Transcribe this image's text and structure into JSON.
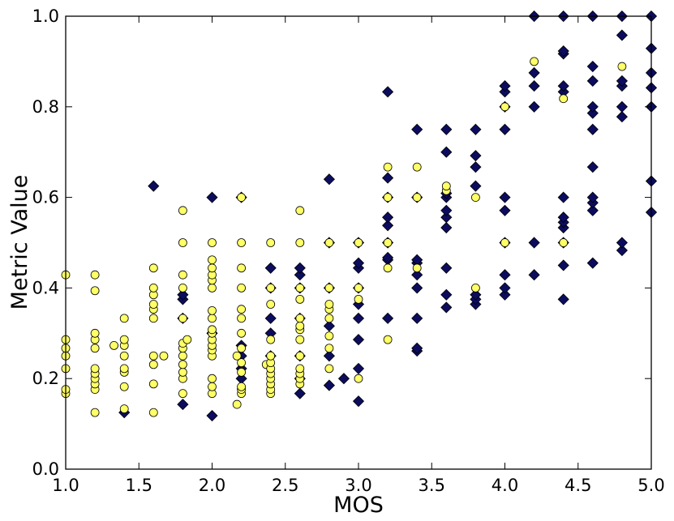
{
  "chart_data": {
    "type": "scatter",
    "xlabel": "MOS",
    "ylabel": "Metric Value",
    "xlim": [
      1.0,
      5.0
    ],
    "ylim": [
      0.0,
      1.0
    ],
    "xticks": [
      "1.0",
      "1.5",
      "2.0",
      "2.5",
      "3.0",
      "3.5",
      "4.0",
      "4.5",
      "5.0"
    ],
    "yticks": [
      "0.0",
      "0.2",
      "0.4",
      "0.6",
      "0.8",
      "1.0"
    ],
    "grid": false,
    "legend": "none",
    "series": [
      {
        "marker": "diamond",
        "color": "#0c0c5e",
        "points": [
          [
            1.4,
            0.125
          ],
          [
            1.6,
            0.625
          ],
          [
            1.8,
            0.143
          ],
          [
            1.8,
            0.333
          ],
          [
            1.8,
            0.375
          ],
          [
            1.8,
            0.385
          ],
          [
            2.0,
            0.118
          ],
          [
            2.0,
            0.3
          ],
          [
            2.0,
            0.6
          ],
          [
            2.2,
            0.2
          ],
          [
            2.2,
            0.222
          ],
          [
            2.2,
            0.25
          ],
          [
            2.2,
            0.273
          ],
          [
            2.2,
            0.6
          ],
          [
            2.4,
            0.25
          ],
          [
            2.4,
            0.3
          ],
          [
            2.4,
            0.333
          ],
          [
            2.4,
            0.4
          ],
          [
            2.4,
            0.444
          ],
          [
            2.6,
            0.167
          ],
          [
            2.6,
            0.2
          ],
          [
            2.6,
            0.25
          ],
          [
            2.6,
            0.333
          ],
          [
            2.6,
            0.4
          ],
          [
            2.6,
            0.429
          ],
          [
            2.6,
            0.444
          ],
          [
            2.8,
            0.185
          ],
          [
            2.8,
            0.25
          ],
          [
            2.8,
            0.316
          ],
          [
            2.8,
            0.4
          ],
          [
            2.8,
            0.5
          ],
          [
            2.8,
            0.64
          ],
          [
            2.9,
            0.2
          ],
          [
            3.0,
            0.15
          ],
          [
            3.0,
            0.222
          ],
          [
            3.0,
            0.286
          ],
          [
            3.0,
            0.333
          ],
          [
            3.0,
            0.364
          ],
          [
            3.0,
            0.4
          ],
          [
            3.0,
            0.444
          ],
          [
            3.0,
            0.455
          ],
          [
            3.0,
            0.5
          ],
          [
            3.2,
            0.333
          ],
          [
            3.2,
            0.462
          ],
          [
            3.2,
            0.467
          ],
          [
            3.2,
            0.5
          ],
          [
            3.2,
            0.538
          ],
          [
            3.2,
            0.556
          ],
          [
            3.2,
            0.6
          ],
          [
            3.2,
            0.643
          ],
          [
            3.2,
            0.833
          ],
          [
            3.4,
            0.261
          ],
          [
            3.4,
            0.267
          ],
          [
            3.4,
            0.333
          ],
          [
            3.4,
            0.4
          ],
          [
            3.4,
            0.429
          ],
          [
            3.4,
            0.455
          ],
          [
            3.4,
            0.462
          ],
          [
            3.4,
            0.6
          ],
          [
            3.4,
            0.75
          ],
          [
            3.6,
            0.357
          ],
          [
            3.6,
            0.385
          ],
          [
            3.6,
            0.444
          ],
          [
            3.6,
            0.533
          ],
          [
            3.6,
            0.556
          ],
          [
            3.6,
            0.571
          ],
          [
            3.6,
            0.6
          ],
          [
            3.6,
            0.609
          ],
          [
            3.6,
            0.7
          ],
          [
            3.6,
            0.75
          ],
          [
            3.8,
            0.364
          ],
          [
            3.8,
            0.375
          ],
          [
            3.8,
            0.385
          ],
          [
            3.8,
            0.625
          ],
          [
            3.8,
            0.667
          ],
          [
            3.8,
            0.692
          ],
          [
            3.8,
            0.75
          ],
          [
            4.0,
            0.385
          ],
          [
            4.0,
            0.4
          ],
          [
            4.0,
            0.429
          ],
          [
            4.0,
            0.5
          ],
          [
            4.0,
            0.571
          ],
          [
            4.0,
            0.6
          ],
          [
            4.0,
            0.75
          ],
          [
            4.0,
            0.8
          ],
          [
            4.0,
            0.833
          ],
          [
            4.0,
            0.846
          ],
          [
            4.2,
            0.429
          ],
          [
            4.2,
            0.5
          ],
          [
            4.2,
            0.8
          ],
          [
            4.2,
            0.846
          ],
          [
            4.2,
            0.875
          ],
          [
            4.2,
            1.0
          ],
          [
            4.4,
            0.375
          ],
          [
            4.4,
            0.45
          ],
          [
            4.4,
            0.5
          ],
          [
            4.4,
            0.533
          ],
          [
            4.4,
            0.545
          ],
          [
            4.4,
            0.556
          ],
          [
            4.4,
            0.6
          ],
          [
            4.4,
            0.833
          ],
          [
            4.4,
            0.846
          ],
          [
            4.4,
            0.917
          ],
          [
            4.4,
            0.923
          ],
          [
            4.4,
            1.0
          ],
          [
            4.6,
            0.455
          ],
          [
            4.6,
            0.571
          ],
          [
            4.6,
            0.588
          ],
          [
            4.6,
            0.6
          ],
          [
            4.6,
            0.667
          ],
          [
            4.6,
            0.75
          ],
          [
            4.6,
            0.786
          ],
          [
            4.6,
            0.8
          ],
          [
            4.6,
            0.857
          ],
          [
            4.6,
            0.889
          ],
          [
            4.6,
            1.0
          ],
          [
            4.8,
            0.483
          ],
          [
            4.8,
            0.5
          ],
          [
            4.8,
            0.778
          ],
          [
            4.8,
            0.8
          ],
          [
            4.8,
            0.846
          ],
          [
            4.8,
            0.857
          ],
          [
            4.8,
            0.958
          ],
          [
            4.8,
            1.0
          ],
          [
            5.0,
            0.567
          ],
          [
            5.0,
            0.636
          ],
          [
            5.0,
            0.8
          ],
          [
            5.0,
            0.842
          ],
          [
            5.0,
            0.875
          ],
          [
            5.0,
            0.929
          ],
          [
            5.0,
            1.0
          ]
        ]
      },
      {
        "marker": "circle",
        "color": "#ffff66",
        "points": [
          [
            1.0,
            0.167
          ],
          [
            1.0,
            0.176
          ],
          [
            1.0,
            0.222
          ],
          [
            1.0,
            0.25
          ],
          [
            1.0,
            0.267
          ],
          [
            1.0,
            0.286
          ],
          [
            1.0,
            0.429
          ],
          [
            1.2,
            0.125
          ],
          [
            1.2,
            0.176
          ],
          [
            1.2,
            0.188
          ],
          [
            1.2,
            0.2
          ],
          [
            1.2,
            0.211
          ],
          [
            1.2,
            0.222
          ],
          [
            1.2,
            0.267
          ],
          [
            1.2,
            0.286
          ],
          [
            1.2,
            0.3
          ],
          [
            1.2,
            0.394
          ],
          [
            1.2,
            0.429
          ],
          [
            1.33,
            0.273
          ],
          [
            1.4,
            0.133
          ],
          [
            1.4,
            0.182
          ],
          [
            1.4,
            0.214
          ],
          [
            1.4,
            0.222
          ],
          [
            1.4,
            0.25
          ],
          [
            1.4,
            0.273
          ],
          [
            1.4,
            0.286
          ],
          [
            1.4,
            0.333
          ],
          [
            1.6,
            0.125
          ],
          [
            1.6,
            0.188
          ],
          [
            1.6,
            0.231
          ],
          [
            1.6,
            0.25
          ],
          [
            1.6,
            0.333
          ],
          [
            1.6,
            0.353
          ],
          [
            1.6,
            0.364
          ],
          [
            1.6,
            0.385
          ],
          [
            1.6,
            0.4
          ],
          [
            1.6,
            0.444
          ],
          [
            1.67,
            0.25
          ],
          [
            1.8,
            0.167
          ],
          [
            1.8,
            0.2
          ],
          [
            1.8,
            0.214
          ],
          [
            1.8,
            0.231
          ],
          [
            1.8,
            0.25
          ],
          [
            1.8,
            0.267
          ],
          [
            1.8,
            0.278
          ],
          [
            1.8,
            0.333
          ],
          [
            1.8,
            0.4
          ],
          [
            1.8,
            0.429
          ],
          [
            1.8,
            0.5
          ],
          [
            1.8,
            0.571
          ],
          [
            1.83,
            0.286
          ],
          [
            2.0,
            0.167
          ],
          [
            2.0,
            0.182
          ],
          [
            2.0,
            0.2
          ],
          [
            2.0,
            0.25
          ],
          [
            2.0,
            0.263
          ],
          [
            2.0,
            0.273
          ],
          [
            2.0,
            0.286
          ],
          [
            2.0,
            0.3
          ],
          [
            2.0,
            0.308
          ],
          [
            2.0,
            0.333
          ],
          [
            2.0,
            0.35
          ],
          [
            2.0,
            0.4
          ],
          [
            2.0,
            0.417
          ],
          [
            2.0,
            0.429
          ],
          [
            2.0,
            0.444
          ],
          [
            2.0,
            0.462
          ],
          [
            2.0,
            0.5
          ],
          [
            2.17,
            0.143
          ],
          [
            2.17,
            0.25
          ],
          [
            2.2,
            0.167
          ],
          [
            2.2,
            0.176
          ],
          [
            2.2,
            0.182
          ],
          [
            2.2,
            0.214
          ],
          [
            2.2,
            0.235
          ],
          [
            2.2,
            0.267
          ],
          [
            2.2,
            0.3
          ],
          [
            2.2,
            0.333
          ],
          [
            2.2,
            0.353
          ],
          [
            2.2,
            0.4
          ],
          [
            2.2,
            0.444
          ],
          [
            2.2,
            0.5
          ],
          [
            2.2,
            0.6
          ],
          [
            2.37,
            0.231
          ],
          [
            2.4,
            0.167
          ],
          [
            2.4,
            0.176
          ],
          [
            2.4,
            0.188
          ],
          [
            2.4,
            0.2
          ],
          [
            2.4,
            0.211
          ],
          [
            2.4,
            0.222
          ],
          [
            2.4,
            0.235
          ],
          [
            2.4,
            0.25
          ],
          [
            2.4,
            0.286
          ],
          [
            2.4,
            0.364
          ],
          [
            2.4,
            0.4
          ],
          [
            2.4,
            0.5
          ],
          [
            2.6,
            0.188
          ],
          [
            2.6,
            0.2
          ],
          [
            2.6,
            0.211
          ],
          [
            2.6,
            0.222
          ],
          [
            2.6,
            0.25
          ],
          [
            2.6,
            0.286
          ],
          [
            2.6,
            0.308
          ],
          [
            2.6,
            0.316
          ],
          [
            2.6,
            0.333
          ],
          [
            2.6,
            0.375
          ],
          [
            2.6,
            0.4
          ],
          [
            2.6,
            0.5
          ],
          [
            2.6,
            0.571
          ],
          [
            2.8,
            0.222
          ],
          [
            2.8,
            0.267
          ],
          [
            2.8,
            0.294
          ],
          [
            2.8,
            0.333
          ],
          [
            2.8,
            0.353
          ],
          [
            2.8,
            0.364
          ],
          [
            2.8,
            0.4
          ],
          [
            2.8,
            0.5
          ],
          [
            3.0,
            0.2
          ],
          [
            3.0,
            0.375
          ],
          [
            3.0,
            0.4
          ],
          [
            3.0,
            0.5
          ],
          [
            3.2,
            0.286
          ],
          [
            3.2,
            0.444
          ],
          [
            3.2,
            0.5
          ],
          [
            3.2,
            0.6
          ],
          [
            3.2,
            0.667
          ],
          [
            3.4,
            0.444
          ],
          [
            3.4,
            0.6
          ],
          [
            3.4,
            0.667
          ],
          [
            3.6,
            0.615
          ],
          [
            3.6,
            0.625
          ],
          [
            3.8,
            0.4
          ],
          [
            3.8,
            0.6
          ],
          [
            4.0,
            0.5
          ],
          [
            4.0,
            0.8
          ],
          [
            4.2,
            0.9
          ],
          [
            4.4,
            0.5
          ],
          [
            4.4,
            0.818
          ],
          [
            4.8,
            0.889
          ]
        ]
      }
    ]
  }
}
